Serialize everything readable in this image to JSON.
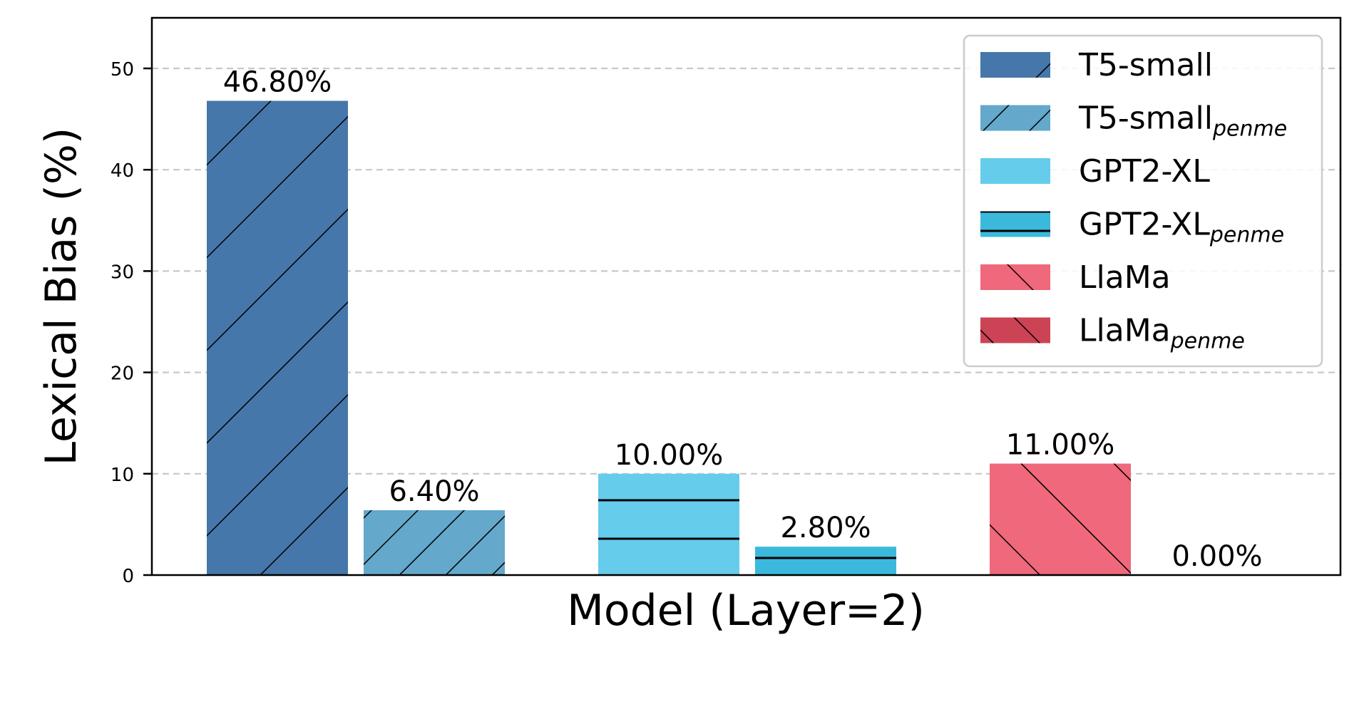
{
  "chart_data": {
    "type": "bar",
    "title": "",
    "xlabel": "Model (Layer=2)",
    "ylabel": "Lexical Bias (%)",
    "ylim": [
      0,
      55
    ],
    "yticks": [
      0,
      10,
      20,
      30,
      40,
      50
    ],
    "grid": "horizontal-dashed",
    "legend_position": "top-right",
    "series": [
      {
        "name": "T5-small",
        "sub": "",
        "value": 46.8,
        "label": "46.80%",
        "color": "#4677aa",
        "hatch": "diag-forward-sparse",
        "group": 0
      },
      {
        "name": "T5-small",
        "sub": "penme",
        "value": 6.4,
        "label": "6.40%",
        "color": "#64a8cb",
        "hatch": "diag-forward-dense",
        "group": 0
      },
      {
        "name": "GPT2-XL",
        "sub": "",
        "value": 10.0,
        "label": "10.00%",
        "color": "#66ccec",
        "hatch": "horizontal-sparse",
        "group": 1
      },
      {
        "name": "GPT2-XL",
        "sub": "penme",
        "value": 2.8,
        "label": "2.80%",
        "color": "#3bb9dc",
        "hatch": "horizontal-dense",
        "group": 1
      },
      {
        "name": "LlaMa",
        "sub": "",
        "value": 11.0,
        "label": "11.00%",
        "color": "#ef687b",
        "hatch": "diag-back-sparse",
        "group": 2
      },
      {
        "name": "LlaMa",
        "sub": "penme",
        "value": 0.0,
        "label": "0.00%",
        "color": "#cd4356",
        "hatch": "diag-back-dense",
        "group": 2
      }
    ]
  }
}
